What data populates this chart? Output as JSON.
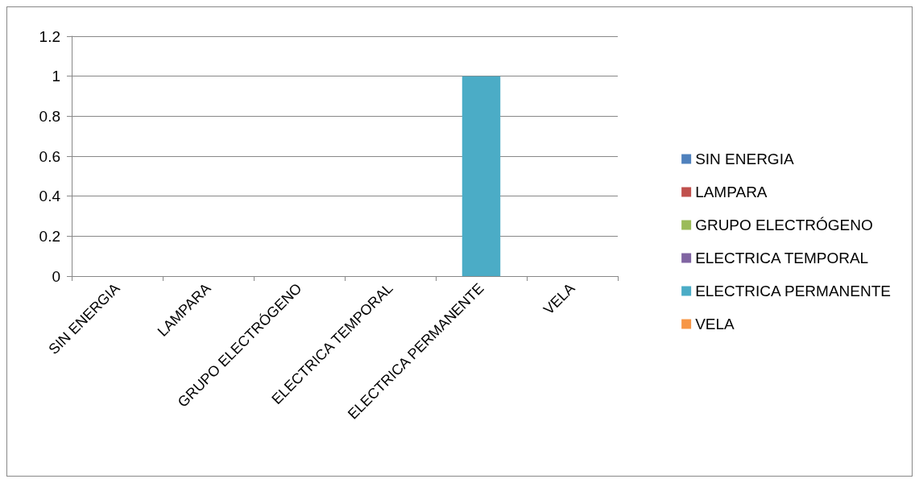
{
  "chart_data": {
    "type": "bar",
    "categories": [
      "SIN ENERGIA",
      "LAMPARA",
      "GRUPO ELECTRÓGENO",
      "ELECTRICA TEMPORAL",
      "ELECTRICA PERMANENTE",
      "VELA"
    ],
    "series": [
      {
        "name": "SIN ENERGIA",
        "color": "#4f81bd",
        "values": [
          0,
          null,
          null,
          null,
          null,
          null
        ]
      },
      {
        "name": "LAMPARA",
        "color": "#c0504d",
        "values": [
          null,
          0,
          null,
          null,
          null,
          null
        ]
      },
      {
        "name": "GRUPO ELECTRÓGENO",
        "color": "#9bbb59",
        "values": [
          null,
          null,
          0,
          null,
          null,
          null
        ]
      },
      {
        "name": "ELECTRICA TEMPORAL",
        "color": "#8064a2",
        "values": [
          null,
          null,
          null,
          0,
          null,
          null
        ]
      },
      {
        "name": "ELECTRICA PERMANENTE",
        "color": "#4bacc6",
        "values": [
          null,
          null,
          null,
          null,
          1,
          null
        ]
      },
      {
        "name": "VELA",
        "color": "#f79646",
        "values": [
          null,
          null,
          null,
          null,
          null,
          0
        ]
      }
    ],
    "ylim": [
      0,
      1.2
    ],
    "yticks": [
      0,
      0.2,
      0.4,
      0.6,
      0.8,
      1,
      1.2
    ],
    "grid": "y",
    "legend": "right"
  }
}
